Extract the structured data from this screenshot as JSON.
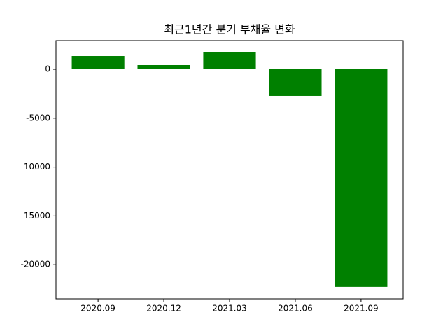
{
  "chart_data": {
    "type": "bar",
    "title": "최근1년간 분기 부채율 변화",
    "categories": [
      "2020.09",
      "2020.12",
      "2021.03",
      "2021.06",
      "2021.09"
    ],
    "values": [
      1360,
      430,
      1790,
      -2720,
      -22270
    ],
    "color": "#008000",
    "ylim": [
      2937,
      -23496
    ],
    "yticks": [
      0,
      -5000,
      -10000,
      -15000,
      -20000
    ],
    "grid": false
  }
}
